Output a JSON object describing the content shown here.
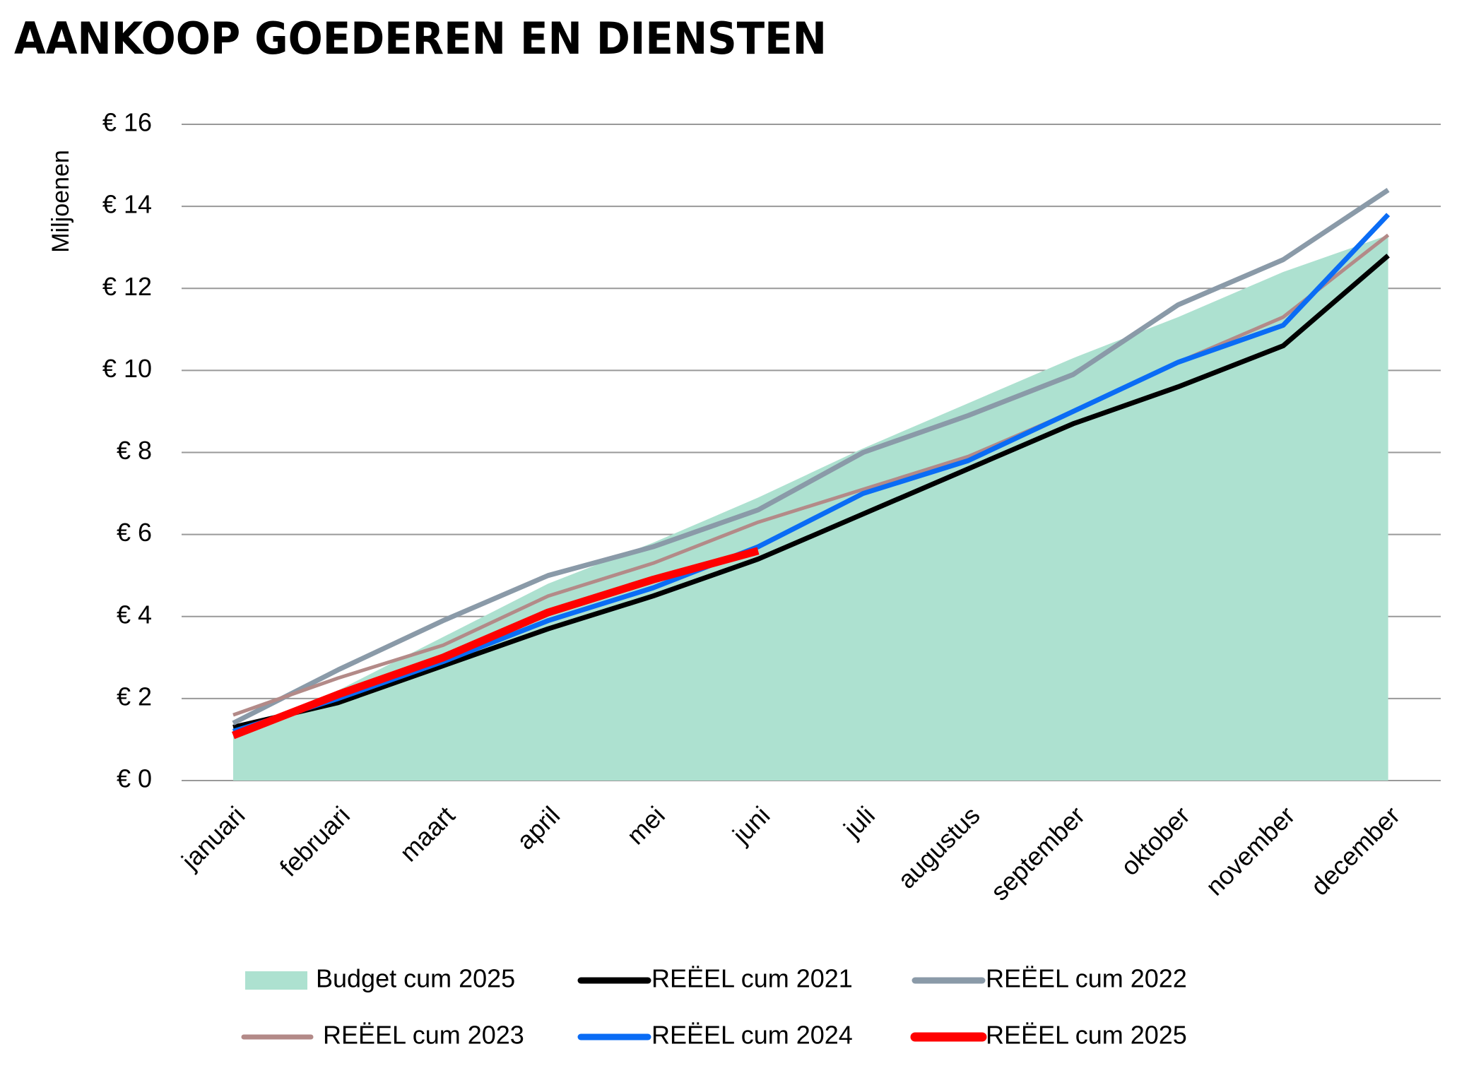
{
  "chart_data": {
    "type": "line",
    "title": "AANKOOP GOEDEREN EN DIENSTEN",
    "y_label": "Miljoenen",
    "categories": [
      "januari",
      "februari",
      "maart",
      "april",
      "mei",
      "juni",
      "juli",
      "augustus",
      "september",
      "oktober",
      "november",
      "december"
    ],
    "series": [
      {
        "name": "Budget cum 2025",
        "color": "#ade1d0",
        "kind": "area",
        "values": [
          1.1,
          2.2,
          3.5,
          4.8,
          5.8,
          6.9,
          8.1,
          9.2,
          10.3,
          11.3,
          12.4,
          13.3
        ]
      },
      {
        "name": "REËEL cum 2021",
        "color": "#000000",
        "values": [
          1.3,
          1.9,
          2.8,
          3.7,
          4.5,
          5.4,
          6.5,
          7.6,
          8.7,
          9.6,
          10.6,
          12.8
        ]
      },
      {
        "name": "REËEL cum 2022",
        "color": "#8a9aa8",
        "values": [
          1.4,
          2.7,
          3.9,
          5.0,
          5.7,
          6.6,
          8.0,
          8.9,
          9.9,
          11.6,
          12.7,
          14.4
        ]
      },
      {
        "name": "REËEL cum 2023",
        "color": "#b38a88",
        "values": [
          1.6,
          2.5,
          3.3,
          4.5,
          5.3,
          6.3,
          7.1,
          7.9,
          9.0,
          10.2,
          11.3,
          13.3
        ]
      },
      {
        "name": "REËEL cum 2024",
        "color": "#0a6cf5",
        "values": [
          1.2,
          2.0,
          2.9,
          3.9,
          4.7,
          5.7,
          7.0,
          7.8,
          9.0,
          10.2,
          11.1,
          13.8
        ]
      },
      {
        "name": "REËEL cum 2025",
        "color": "#ff0000",
        "values": [
          1.1,
          2.1,
          3.0,
          4.1,
          4.9,
          5.6,
          null,
          null,
          null,
          null,
          null,
          null
        ]
      }
    ],
    "ylim": [
      0,
      16
    ],
    "yticks": [
      {
        "value": 0,
        "label": "€ 0"
      },
      {
        "value": 2,
        "label": "€ 2"
      },
      {
        "value": 4,
        "label": "€ 4"
      },
      {
        "value": 6,
        "label": "€ 6"
      },
      {
        "value": 8,
        "label": "€ 8"
      },
      {
        "value": 10,
        "label": "€ 10"
      },
      {
        "value": 12,
        "label": "€ 12"
      },
      {
        "value": 14,
        "label": "€ 14"
      },
      {
        "value": 16,
        "label": "€ 16"
      }
    ],
    "grid": true
  }
}
